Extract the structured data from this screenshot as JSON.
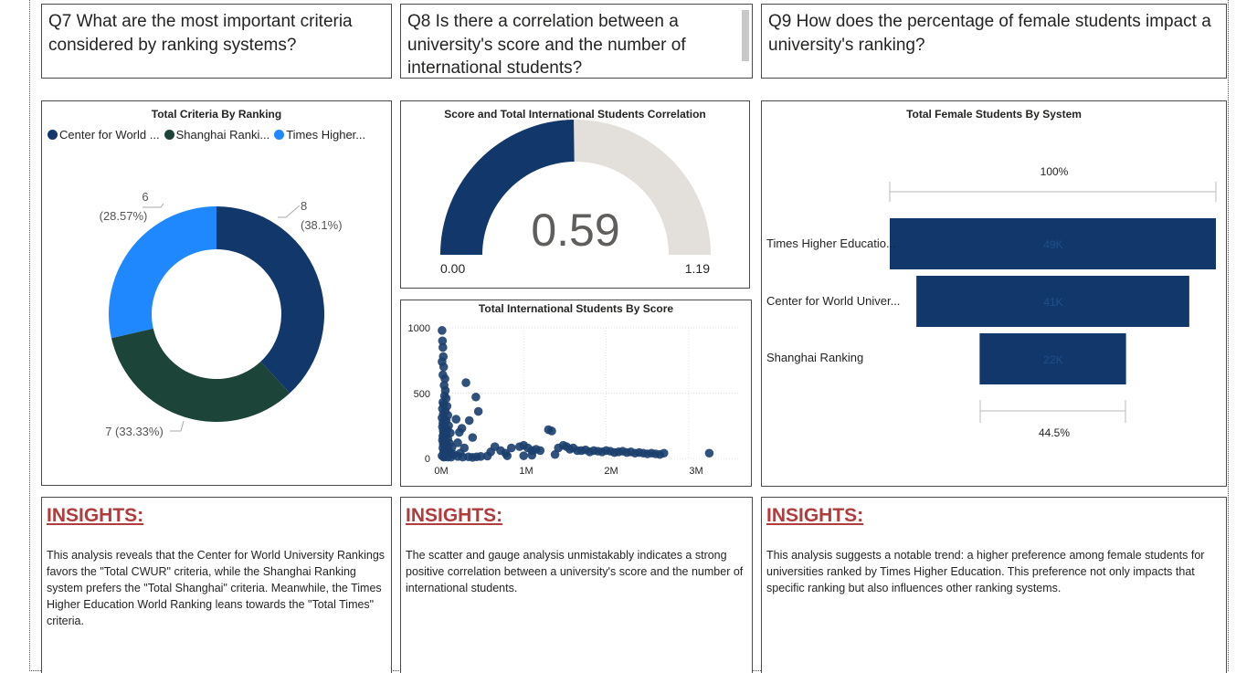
{
  "questions": {
    "q7": "Q7 What are the most important criteria considered by ranking systems?",
    "q8": "Q8 Is there a correlation between a university's score and the number of international students?",
    "q9": "Q9 How does the percentage of female students impact a university's ranking?"
  },
  "donut": {
    "title": "Total Criteria By Ranking",
    "legend": [
      {
        "label": "Center for World ...",
        "color": "#12386b"
      },
      {
        "label": "Shanghai Ranki...",
        "color": "#1c4438"
      },
      {
        "label": "Times Higher...",
        "color": "#1f88ff"
      }
    ],
    "labels": {
      "cwur_value": "8",
      "cwur_pct": "(38.1%)",
      "shanghai": "7 (33.33%)",
      "times_value": "6",
      "times_pct": "(28.57%)"
    }
  },
  "gauge": {
    "title": "Score and Total International Students Correlation",
    "value_label": "0.59",
    "min_label": "0.00",
    "max_label": "1.19",
    "fill_color": "#12386b",
    "track_color": "#e3e0db"
  },
  "scatter": {
    "title": "Total International Students By Score",
    "y_ticks": [
      "1000",
      "500",
      "0"
    ],
    "x_ticks": [
      "0M",
      "1M",
      "2M",
      "3M"
    ],
    "point_color": "#1b3f6e"
  },
  "funnel": {
    "title": "Total Female Students By System",
    "top_pct": "100%",
    "bottom_pct": "44.5%",
    "bar_color": "#12386b",
    "rows": [
      {
        "label": "Times Higher Educatio...",
        "value_label": "49K"
      },
      {
        "label": "Center for World Univer...",
        "value_label": "41K"
      },
      {
        "label": "Shanghai Ranking",
        "value_label": "22K"
      }
    ]
  },
  "insights": {
    "title": "INSIGHTS:",
    "i1": "This analysis reveals that the Center for World University Rankings favors the \"Total CWUR\" criteria, while the Shanghai Ranking system prefers the \"Total Shanghai\" criteria. Meanwhile, the Times Higher Education World Ranking leans towards the \"Total Times\" criteria.",
    "i2": "The scatter and gauge analysis unmistakably indicates a strong positive correlation between a university's score and the number of international students.",
    "i3": "This analysis suggests a notable trend: a higher preference among female students for universities ranked by Times Higher Education. This preference not only impacts that specific ranking but also influences other ranking systems."
  },
  "chart_data": [
    {
      "type": "pie",
      "title": "Total Criteria By Ranking",
      "categories": [
        "Center for World ...",
        "Shanghai Ranki...",
        "Times Higher..."
      ],
      "values": [
        8,
        7,
        6
      ],
      "percentages": [
        38.1,
        33.33,
        28.57
      ],
      "legend": "top-left"
    },
    {
      "type": "gauge",
      "title": "Score and Total International Students Correlation",
      "value": 0.59,
      "min": 0.0,
      "max": 1.19
    },
    {
      "type": "scatter",
      "title": "Total International Students By Score",
      "xlim": [
        0,
        3500000
      ],
      "ylim": [
        0,
        1000
      ],
      "grid": true,
      "points": [
        [
          10000,
          980
        ],
        [
          15000,
          900
        ],
        [
          20000,
          850
        ],
        [
          25000,
          780
        ],
        [
          10000,
          740
        ],
        [
          30000,
          700
        ],
        [
          20000,
          640
        ],
        [
          45000,
          610
        ],
        [
          35000,
          560
        ],
        [
          50000,
          520
        ],
        [
          40000,
          480
        ],
        [
          60000,
          460
        ],
        [
          20000,
          430
        ],
        [
          30000,
          410
        ],
        [
          70000,
          400
        ],
        [
          15000,
          380
        ],
        [
          50000,
          360
        ],
        [
          25000,
          340
        ],
        [
          80000,
          330
        ],
        [
          10000,
          310
        ],
        [
          40000,
          300
        ],
        [
          60000,
          290
        ],
        [
          20000,
          270
        ],
        [
          35000,
          260
        ],
        [
          90000,
          250
        ],
        [
          15000,
          240
        ],
        [
          50000,
          230
        ],
        [
          70000,
          220
        ],
        [
          25000,
          210
        ],
        [
          40000,
          200
        ],
        [
          110000,
          195
        ],
        [
          30000,
          190
        ],
        [
          60000,
          180
        ],
        [
          20000,
          170
        ],
        [
          45000,
          160
        ],
        [
          80000,
          150
        ],
        [
          15000,
          140
        ],
        [
          35000,
          130
        ],
        [
          55000,
          120
        ],
        [
          100000,
          115
        ],
        [
          25000,
          110
        ],
        [
          40000,
          100
        ],
        [
          70000,
          90
        ],
        [
          130000,
          85
        ],
        [
          20000,
          80
        ],
        [
          50000,
          70
        ],
        [
          90000,
          60
        ],
        [
          30000,
          50
        ],
        [
          60000,
          40
        ],
        [
          120000,
          35
        ],
        [
          150000,
          30
        ],
        [
          10000,
          20
        ],
        [
          40000,
          15
        ],
        [
          80000,
          10
        ],
        [
          300000,
          580
        ],
        [
          420000,
          470
        ],
        [
          450000,
          360
        ],
        [
          340000,
          290
        ],
        [
          250000,
          230
        ],
        [
          380000,
          160
        ],
        [
          200000,
          120
        ],
        [
          280000,
          80
        ],
        [
          230000,
          40
        ],
        [
          180000,
          300
        ],
        [
          220000,
          200
        ],
        [
          30000,
          10
        ],
        [
          120000,
          10
        ],
        [
          200000,
          15
        ],
        [
          260000,
          10
        ],
        [
          330000,
          12
        ],
        [
          380000,
          8
        ],
        [
          430000,
          12
        ],
        [
          480000,
          15
        ],
        [
          560000,
          18
        ],
        [
          600000,
          50
        ],
        [
          650000,
          90
        ],
        [
          720000,
          60
        ],
        [
          780000,
          40
        ],
        [
          850000,
          80
        ],
        [
          950000,
          90
        ],
        [
          1000000,
          100
        ],
        [
          1050000,
          80
        ],
        [
          1100000,
          60
        ],
        [
          1150000,
          70
        ],
        [
          1200000,
          60
        ],
        [
          1300000,
          220
        ],
        [
          1340000,
          210
        ],
        [
          1380000,
          30
        ],
        [
          1420000,
          80
        ],
        [
          1480000,
          100
        ],
        [
          1520000,
          90
        ],
        [
          1560000,
          70
        ],
        [
          1600000,
          80
        ],
        [
          1650000,
          60
        ],
        [
          1700000,
          60
        ],
        [
          1750000,
          65
        ],
        [
          1800000,
          50
        ],
        [
          1850000,
          60
        ],
        [
          1900000,
          55
        ],
        [
          1950000,
          50
        ],
        [
          2000000,
          60
        ],
        [
          2050000,
          55
        ],
        [
          2100000,
          45
        ],
        [
          2150000,
          50
        ],
        [
          2200000,
          55
        ],
        [
          2250000,
          45
        ],
        [
          2300000,
          50
        ],
        [
          2350000,
          40
        ],
        [
          2400000,
          45
        ],
        [
          2450000,
          40
        ],
        [
          2500000,
          35
        ],
        [
          2550000,
          40
        ],
        [
          2600000,
          35
        ],
        [
          2650000,
          30
        ],
        [
          2700000,
          40
        ],
        [
          3250000,
          40
        ],
        [
          1000000,
          20
        ],
        [
          1100000,
          25
        ],
        [
          800000,
          20
        ]
      ]
    },
    {
      "type": "bar",
      "title": "Total Female Students By System",
      "categories": [
        "Times Higher Educatio...",
        "Center for World Univer...",
        "Shanghai Ranking"
      ],
      "values": [
        49000,
        41000,
        22000
      ],
      "percent_range": [
        "100%",
        "44.5%"
      ]
    }
  ]
}
